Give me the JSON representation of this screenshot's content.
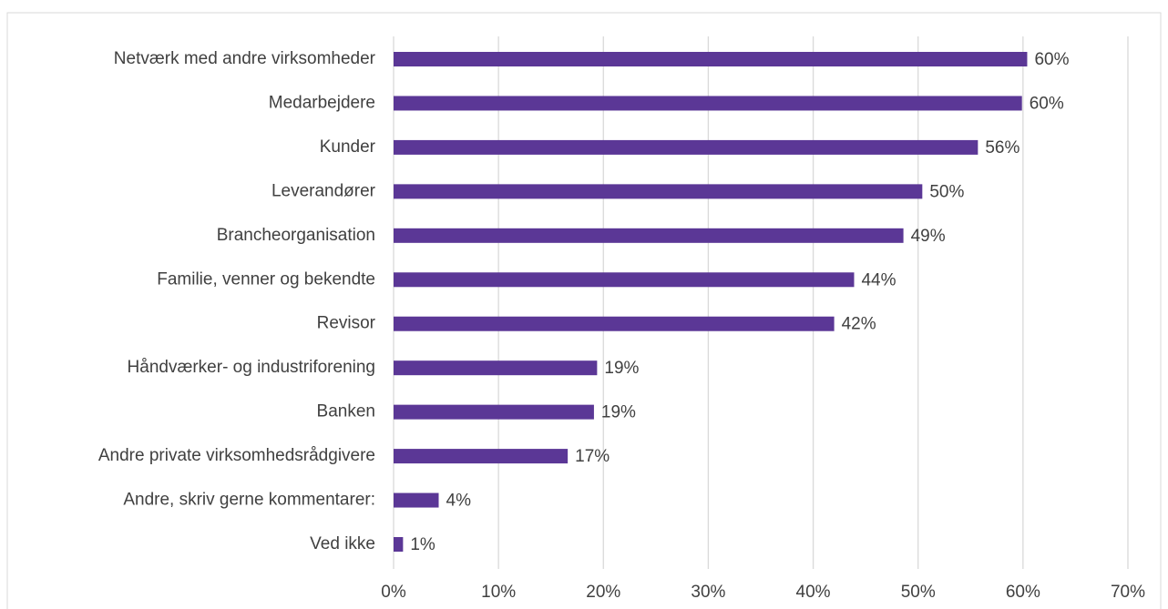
{
  "chart_data": {
    "type": "barh",
    "categories": [
      "Netværk med andre virksomheder",
      "Medarbejdere",
      "Kunder",
      "Leverandører",
      "Brancheorganisation",
      "Familie, venner og bekendte",
      "Revisor",
      "Håndværker- og industriforening",
      "Banken",
      "Andre private virksomhedsrådgivere",
      "Andre, skriv gerne kommentarer:",
      "Ved ikke"
    ],
    "values": [
      60.4,
      59.9,
      55.7,
      50.4,
      48.6,
      43.9,
      42.0,
      19.4,
      19.1,
      16.6,
      4.3,
      0.9
    ],
    "value_labels": [
      "60%",
      "60%",
      "56%",
      "50%",
      "49%",
      "44%",
      "42%",
      "19%",
      "19%",
      "17%",
      "4%",
      "1%"
    ],
    "color": "#5b3796",
    "xlim": [
      0,
      70
    ],
    "xticks": [
      {
        "value": 0,
        "label": "0%"
      },
      {
        "value": 10,
        "label": "10%"
      },
      {
        "value": 20,
        "label": "20%"
      },
      {
        "value": 30,
        "label": "30%"
      },
      {
        "value": 40,
        "label": "40%"
      },
      {
        "value": 50,
        "label": "50%"
      },
      {
        "value": 60,
        "label": "60%"
      },
      {
        "value": 70,
        "label": "70%"
      }
    ],
    "grid": true
  }
}
